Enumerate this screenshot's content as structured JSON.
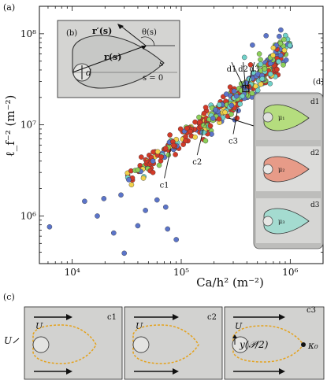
{
  "panels": {
    "a": "(a)",
    "b": "(b)",
    "c": "(c)",
    "d": "(d)"
  },
  "chart_data": {
    "type": "scatter",
    "x_scale": "log",
    "y_scale": "log",
    "xlabel": "Ca/h²  (m⁻²)",
    "ylabel": "ℓ_f⁻² (m⁻²)",
    "xlim": [
      5000,
      2000000
    ],
    "ylim": [
      300000,
      200000000
    ],
    "x_ticks": [
      {
        "value": 10000,
        "label": "10⁴"
      },
      {
        "value": 100000,
        "label": "10⁵"
      },
      {
        "value": 1000000,
        "label": "10⁶"
      }
    ],
    "y_ticks": [
      {
        "value": 1000000,
        "label": "10⁶"
      },
      {
        "value": 10000000,
        "label": "10⁷"
      },
      {
        "value": 100000000,
        "label": "10⁸"
      }
    ],
    "grid": false,
    "series_colors": [
      "#d33a28",
      "#5b74c9",
      "#8ccf5a",
      "#f2d24a",
      "#6fd1c9"
    ],
    "scatter_points": [
      {
        "x": 6200,
        "y": 760000,
        "c": 1
      },
      {
        "x": 13000,
        "y": 1450000,
        "c": 1
      },
      {
        "x": 17000,
        "y": 1000000,
        "c": 1
      },
      {
        "x": 19500,
        "y": 1550000,
        "c": 1
      },
      {
        "x": 24000,
        "y": 650000,
        "c": 1
      },
      {
        "x": 28000,
        "y": 1700000,
        "c": 1
      },
      {
        "x": 30000,
        "y": 390000,
        "c": 1
      },
      {
        "x": 33000,
        "y": 2500000,
        "c": 1
      },
      {
        "x": 40000,
        "y": 780000,
        "c": 1
      },
      {
        "x": 47000,
        "y": 1150000,
        "c": 1
      },
      {
        "x": 55000,
        "y": 4000000,
        "c": 1
      },
      {
        "x": 60000,
        "y": 1500000,
        "c": 1
      },
      {
        "x": 75000,
        "y": 720000,
        "c": 1
      },
      {
        "x": 72000,
        "y": 1250000,
        "c": 1
      },
      {
        "x": 90000,
        "y": 550000,
        "c": 1
      },
      {
        "x": 45000,
        "y": 2600000,
        "c": 3
      },
      {
        "x": 35000,
        "y": 2200000,
        "c": 3
      },
      {
        "x": 55000,
        "y": 3000000,
        "c": 0
      },
      {
        "x": 40000,
        "y": 3200000,
        "c": 2
      },
      {
        "x": 450000,
        "y": 75000000,
        "c": 1
      },
      {
        "x": 600000,
        "y": 95000000,
        "c": 1
      },
      {
        "x": 820000,
        "y": 110000000,
        "c": 1
      },
      {
        "x": 520000,
        "y": 60000000,
        "c": 2
      },
      {
        "x": 700000,
        "y": 70000000,
        "c": 3
      },
      {
        "x": 380000,
        "y": 55000000,
        "c": 4
      }
    ],
    "point_clouds": [
      {
        "from": [
          35000,
          2800000
        ],
        "to": [
          800000,
          45000000
        ],
        "spread": 0.09,
        "count": 240,
        "weights": [
          6,
          1,
          1,
          1,
          1
        ]
      },
      {
        "from": [
          150000,
          8000000
        ],
        "to": [
          900000,
          70000000
        ],
        "spread": 0.11,
        "count": 140,
        "weights": [
          2,
          2,
          2,
          1,
          2
        ]
      },
      {
        "from": [
          300000,
          15000000
        ],
        "to": [
          1000000,
          90000000
        ],
        "spread": 0.12,
        "count": 70,
        "weights": [
          1,
          3,
          2,
          1,
          2
        ]
      }
    ],
    "annotations": [
      {
        "label": "c1",
        "point": [
          80000,
          5500000
        ],
        "text_at": [
          70000,
          2400000
        ]
      },
      {
        "label": "c2",
        "point": [
          160000,
          9000000
        ],
        "text_at": [
          140000,
          4300000
        ]
      },
      {
        "label": "c3",
        "point": [
          330000,
          15000000
        ],
        "text_at": [
          300000,
          7300000
        ]
      },
      {
        "label": "d1",
        "point": [
          380000,
          25000000
        ],
        "text_at": [
          290000,
          45000000
        ]
      },
      {
        "label": "d2",
        "point": [
          390000,
          25000000
        ],
        "text_at": [
          370000,
          45000000
        ]
      },
      {
        "label": "d3",
        "point": [
          400000,
          25000000
        ],
        "text_at": [
          470000,
          45000000
        ]
      }
    ]
  },
  "inset_b": {
    "r_prime": "r′(s)",
    "theta": "θ(s)",
    "r": "r(s)",
    "s": "s",
    "s0": "s = 0",
    "d": "d"
  },
  "inset_d": {
    "items": [
      {
        "label": "d1",
        "mu": "μ₁",
        "color": "#b5dd7e"
      },
      {
        "label": "d2",
        "mu": "μ₂",
        "color": "#e79b88"
      },
      {
        "label": "d3",
        "mu": "μ₃",
        "color": "#a4dbd0"
      }
    ]
  },
  "panel_c": {
    "flow_label": "U",
    "arrow_label": "U",
    "frames": [
      "c1",
      "c2",
      "c3"
    ],
    "y_label": "y(𝒫/2)",
    "kappa": "κ₀"
  }
}
